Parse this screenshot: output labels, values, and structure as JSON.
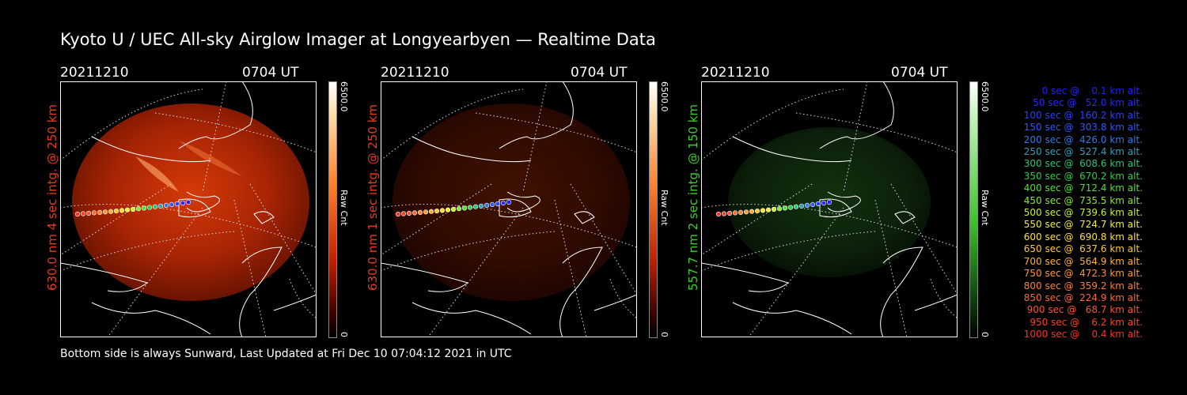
{
  "title": "Kyoto U / UEC All-sky Airglow Imager at Longyearbyen — Realtime Data",
  "footer": "Bottom side is always Sunward, Last Updated at Fri Dec 10 07:04:12 2021 in UTC",
  "panels": [
    {
      "date": "20211210",
      "time": "0704 UT",
      "ylabel": "630.0 nm 4 sec intg. @ 250 km",
      "ylabel_color": "#e83a1a",
      "cbar_max": "6500.0",
      "cbar_label": "Raw Cnt",
      "cbar_min": "0",
      "scheme": "red",
      "brightness": 1.0
    },
    {
      "date": "20211210",
      "time": "0704 UT",
      "ylabel": "630.0 nm 1 sec intg. @ 250 km",
      "ylabel_color": "#e83a1a",
      "cbar_max": "6500.0",
      "cbar_label": "Raw Cnt",
      "cbar_min": "0",
      "scheme": "red",
      "brightness": 0.3
    },
    {
      "date": "20211210",
      "time": "0704 UT",
      "ylabel": "557.7 nm 2 sec intg. @ 150 km",
      "ylabel_color": "#3ccf2a",
      "cbar_max": "6500.0",
      "cbar_label": "Raw Cnt",
      "cbar_min": "0",
      "scheme": "green",
      "brightness": 0.45
    }
  ],
  "legend": [
    {
      "text": "   0 sec @    0.1 km alt.",
      "color": "#2020ff"
    },
    {
      "text": "  50 sec @   52.0 km alt.",
      "color": "#2828ff"
    },
    {
      "text": " 100 sec @  160.2 km alt.",
      "color": "#2a40ff"
    },
    {
      "text": " 150 sec @  303.8 km alt.",
      "color": "#2f56ff"
    },
    {
      "text": " 200 sec @  426.0 km alt.",
      "color": "#2f7ae8"
    },
    {
      "text": " 250 sec @  527.4 km alt.",
      "color": "#2fa0b8"
    },
    {
      "text": " 300 sec @  608.6 km alt.",
      "color": "#20c878"
    },
    {
      "text": " 350 sec @  670.2 km alt.",
      "color": "#28d040"
    },
    {
      "text": " 400 sec @  712.4 km alt.",
      "color": "#50e030"
    },
    {
      "text": " 450 sec @  735.5 km alt.",
      "color": "#88e830"
    },
    {
      "text": " 500 sec @  739.6 km alt.",
      "color": "#c8f030"
    },
    {
      "text": " 550 sec @  724.7 km alt.",
      "color": "#f0f030"
    },
    {
      "text": " 600 sec @  690.8 km alt.",
      "color": "#ffe030"
    },
    {
      "text": " 650 sec @  637.6 km alt.",
      "color": "#ffc830"
    },
    {
      "text": " 700 sec @  564.9 km alt.",
      "color": "#ffb030"
    },
    {
      "text": " 750 sec @  472.3 km alt.",
      "color": "#ff9830"
    },
    {
      "text": " 800 sec @  359.2 km alt.",
      "color": "#ff8030"
    },
    {
      "text": " 850 sec @  224.9 km alt.",
      "color": "#ff6830"
    },
    {
      "text": " 900 sec @   68.7 km alt.",
      "color": "#ff5030"
    },
    {
      "text": " 950 sec @    6.2 km alt.",
      "color": "#ff4020"
    },
    {
      "text": "1000 sec @    0.4 km alt.",
      "color": "#ff3020"
    }
  ]
}
